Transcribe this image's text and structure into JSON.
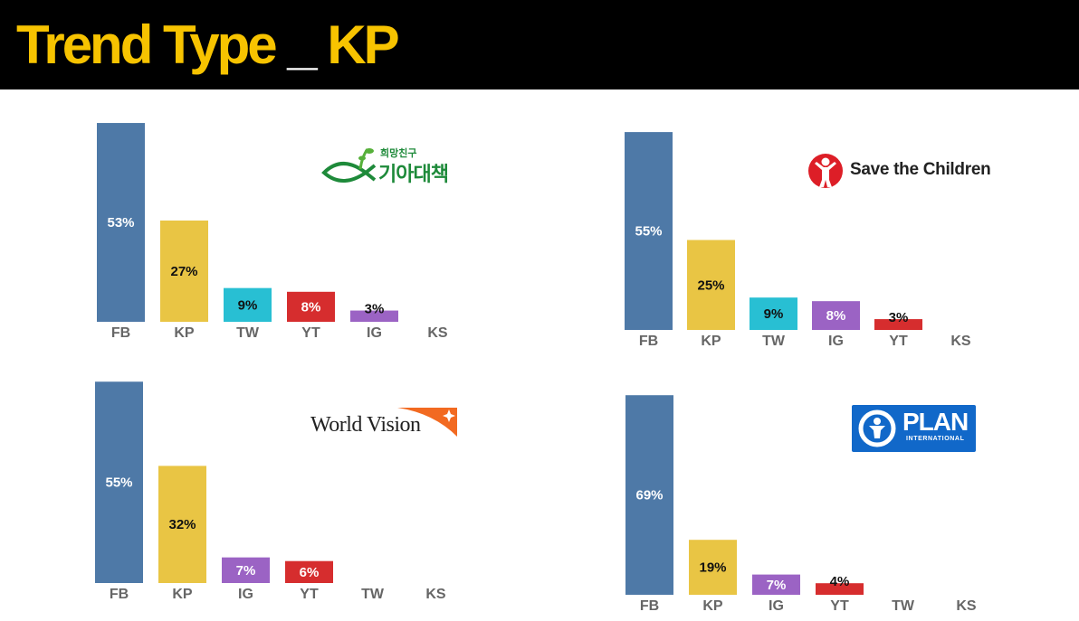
{
  "header": {
    "title_part1": "Trend Type",
    "title_part2": "_",
    "title_part3": "KP"
  },
  "colors": {
    "FB": "#4e79a7",
    "KP": "#e9c544",
    "TW": "#28bfd3",
    "YT": "#d62d2e",
    "IG": "#9b63c4",
    "label_dark": "#111111",
    "label_light": "#ffffff",
    "axis": "#666666"
  },
  "logos": {
    "kiabo": {
      "small": "희망친구",
      "big": "기아대책"
    },
    "stc": {
      "text": "Save the Children"
    },
    "wv": {
      "text": "World Vision"
    },
    "plan": {
      "main": "PLAN",
      "sub": "INTERNATIONAL"
    }
  },
  "chart_data": [
    {
      "type": "bar",
      "org": "kiabo",
      "categories": [
        "FB",
        "KP",
        "TW",
        "YT",
        "IG",
        "KS"
      ],
      "values": [
        53,
        27,
        9,
        8,
        3,
        0
      ],
      "labels": [
        "53%",
        "27%",
        "9%",
        "8%",
        "3%",
        ""
      ]
    },
    {
      "type": "bar",
      "org": "stc",
      "categories": [
        "FB",
        "KP",
        "TW",
        "IG",
        "YT",
        "KS"
      ],
      "values": [
        55,
        25,
        9,
        8,
        3,
        0
      ],
      "labels": [
        "55%",
        "25%",
        "9%",
        "8%",
        "3%",
        ""
      ]
    },
    {
      "type": "bar",
      "org": "wv",
      "categories": [
        "FB",
        "KP",
        "IG",
        "YT",
        "TW",
        "KS"
      ],
      "values": [
        55,
        32,
        7,
        6,
        0,
        0
      ],
      "labels": [
        "55%",
        "32%",
        "7%",
        "6%",
        "",
        ""
      ]
    },
    {
      "type": "bar",
      "org": "plan",
      "categories": [
        "FB",
        "KP",
        "IG",
        "YT",
        "TW",
        "KS"
      ],
      "values": [
        69,
        19,
        7,
        4,
        0,
        0
      ],
      "labels": [
        "69%",
        "19%",
        "7%",
        "4%",
        "",
        ""
      ]
    }
  ]
}
